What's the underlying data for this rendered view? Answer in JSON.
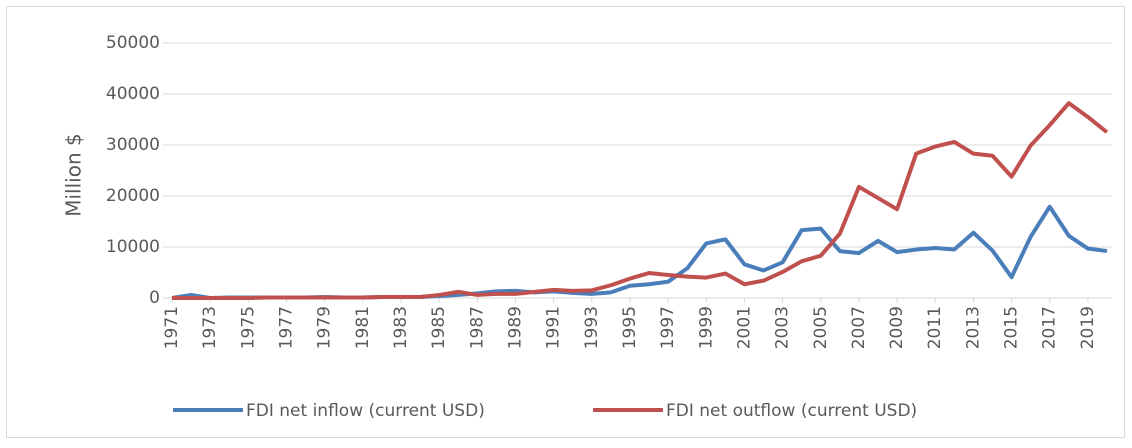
{
  "chart_data": {
    "type": "line",
    "ylabel": "Million $",
    "x": [
      1971,
      1972,
      1973,
      1974,
      1975,
      1976,
      1977,
      1978,
      1979,
      1980,
      1981,
      1982,
      1983,
      1984,
      1985,
      1986,
      1987,
      1988,
      1989,
      1990,
      1991,
      1992,
      1993,
      1994,
      1995,
      1996,
      1997,
      1998,
      1999,
      2000,
      2001,
      2002,
      2003,
      2004,
      2005,
      2006,
      2007,
      2008,
      2009,
      2010,
      2011,
      2012,
      2013,
      2014,
      2015,
      2016,
      2017,
      2018,
      2019,
      2020
    ],
    "xlim": [
      1970.5,
      2020.5
    ],
    "xticks": [
      1971,
      1973,
      1975,
      1977,
      1979,
      1981,
      1983,
      1985,
      1987,
      1989,
      1991,
      1993,
      1995,
      1997,
      1999,
      2001,
      2003,
      2005,
      2007,
      2009,
      2011,
      2013,
      2015,
      2017,
      2019
    ],
    "ylim": [
      0,
      50000
    ],
    "yticks": [
      0,
      10000,
      20000,
      30000,
      40000,
      50000
    ],
    "grid": true,
    "series": [
      {
        "name": "FDI net inflow (current USD)",
        "color": "#4a7ebb",
        "values": [
          0,
          600,
          0,
          100,
          100,
          100,
          100,
          100,
          200,
          100,
          100,
          200,
          200,
          200,
          400,
          600,
          900,
          1300,
          1400,
          1100,
          1300,
          1000,
          800,
          1100,
          2400,
          2700,
          3200,
          5800,
          10700,
          11500,
          6600,
          5400,
          7000,
          13300,
          13600,
          9200,
          8800,
          11200,
          9000,
          9500,
          9800,
          9500,
          12800,
          9300,
          4100,
          12000,
          17900,
          12200,
          9700,
          9200
        ]
      },
      {
        "name": "FDI net outflow (current USD)",
        "color": "#c0504d",
        "values": [
          0,
          0,
          0,
          0,
          0,
          100,
          100,
          100,
          100,
          100,
          100,
          200,
          200,
          200,
          600,
          1200,
          600,
          800,
          800,
          1200,
          1600,
          1400,
          1500,
          2500,
          3800,
          4900,
          4500,
          4200,
          4000,
          4800,
          2700,
          3400,
          5100,
          7200,
          8300,
          12600,
          21800,
          19600,
          17400,
          28300,
          29700,
          30600,
          28300,
          27900,
          23800,
          29900,
          33900,
          38200,
          35500,
          32500
        ]
      }
    ]
  }
}
